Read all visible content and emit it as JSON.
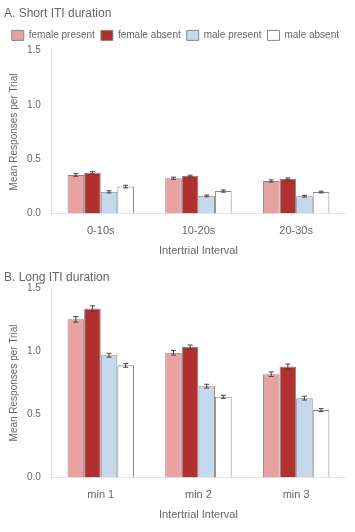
{
  "chart_data": [
    {
      "type": "bar",
      "title": "A. Short ITI duration",
      "xlabel": "Intertrial Interval",
      "ylabel": "Mean Responses per Trial",
      "categories": [
        "0-10s",
        "10-20s",
        "20-30s"
      ],
      "series": [
        {
          "name": "female present",
          "color": "#E8A0A0",
          "values": [
            0.355,
            0.325,
            0.3
          ],
          "errors": [
            0.012,
            0.01,
            0.01
          ]
        },
        {
          "name": "female absent",
          "color": "#B03030",
          "values": [
            0.375,
            0.345,
            0.32
          ],
          "errors": [
            0.01,
            0.008,
            0.008
          ]
        },
        {
          "name": "male present",
          "color": "#C5D8EC",
          "values": [
            0.2,
            0.163,
            0.16
          ],
          "errors": [
            0.01,
            0.008,
            0.008
          ]
        },
        {
          "name": "male absent",
          "color": "#FFFFFF",
          "values": [
            0.248,
            0.207,
            0.198
          ],
          "errors": [
            0.012,
            0.01,
            0.008
          ]
        }
      ],
      "ylim": [
        0,
        1.5
      ],
      "yticks": [
        {
          "value": 0,
          "label": "0.0"
        },
        {
          "value": 0.5,
          "label": "0.5"
        },
        {
          "value": 1.0,
          "label": "1.0"
        },
        {
          "value": 1.5,
          "label": "1.5"
        }
      ],
      "grid": false,
      "legend": "upper right"
    },
    {
      "type": "bar",
      "title": "B. Long ITI duration",
      "xlabel": "Intertrial Interval",
      "ylabel": "Mean Responses per Trial",
      "categories": [
        "min 1",
        "min 2",
        "min 3"
      ],
      "series": [
        {
          "color": "#E8A0A0",
          "values": [
            1.255,
            0.99,
            0.82
          ],
          "errors": [
            0.022,
            0.018,
            0.018
          ]
        },
        {
          "color": "#B03030",
          "values": [
            1.34,
            1.035,
            0.88
          ],
          "errors": [
            0.022,
            0.016,
            0.02
          ]
        },
        {
          "color": "#C5D8EC",
          "values": [
            0.97,
            0.725,
            0.63
          ],
          "errors": [
            0.015,
            0.015,
            0.015
          ]
        },
        {
          "color": "#FFFFFF",
          "values": [
            0.89,
            0.64,
            0.535
          ],
          "errors": [
            0.015,
            0.012,
            0.012
          ]
        }
      ],
      "ylim": [
        0,
        1.5
      ],
      "yticks": [
        {
          "value": 0,
          "label": "0.0"
        },
        {
          "value": 0.5,
          "label": "0.5"
        },
        {
          "value": 1.0,
          "label": "1.0"
        },
        {
          "value": 1.5,
          "label": "1.5"
        }
      ],
      "grid": false
    }
  ]
}
